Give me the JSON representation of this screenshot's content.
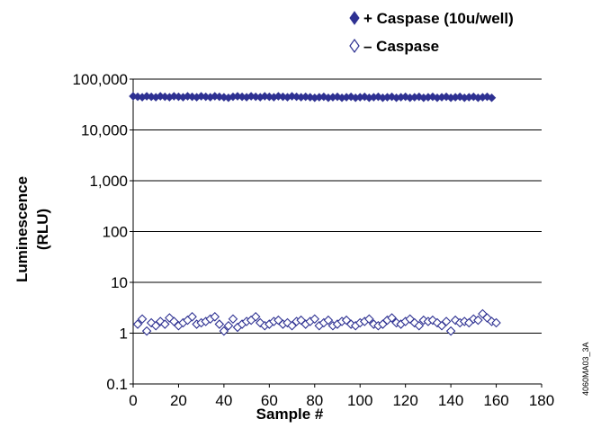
{
  "chart_data": {
    "type": "scatter",
    "xlabel": "Sample #",
    "ylabel_lines": [
      "Luminescence",
      "(RLU)"
    ],
    "xlim": [
      0,
      180
    ],
    "ylim": [
      0.1,
      100000
    ],
    "y_scale": "log",
    "x_ticks": [
      "0",
      "20",
      "40",
      "60",
      "80",
      "100",
      "120",
      "140",
      "160",
      "180"
    ],
    "y_ticks": [
      "0.1",
      "1",
      "10",
      "100",
      "1,000",
      "10,000",
      "100,000"
    ],
    "grid": "horizontal",
    "legend_position": "top-right",
    "series": [
      {
        "name": "+ Caspase (10u/well)",
        "marker": "filled-diamond",
        "color": "#2e3192",
        "x": [
          0,
          2,
          4,
          6,
          8,
          10,
          12,
          14,
          16,
          18,
          20,
          22,
          24,
          26,
          28,
          30,
          32,
          34,
          36,
          38,
          40,
          42,
          44,
          46,
          48,
          50,
          52,
          54,
          56,
          58,
          60,
          62,
          64,
          66,
          68,
          70,
          72,
          74,
          76,
          78,
          80,
          82,
          84,
          86,
          88,
          90,
          92,
          94,
          96,
          98,
          100,
          102,
          104,
          106,
          108,
          110,
          112,
          114,
          116,
          118,
          120,
          122,
          124,
          126,
          128,
          130,
          132,
          134,
          136,
          138,
          140,
          142,
          144,
          146,
          148,
          150,
          152,
          154,
          156,
          158
        ],
        "y": [
          46000,
          45000,
          44000,
          46000,
          45000,
          44000,
          46000,
          45000,
          44000,
          46000,
          45000,
          44000,
          46000,
          45000,
          44000,
          46000,
          45000,
          44000,
          46000,
          45000,
          44000,
          43000,
          45000,
          46000,
          45000,
          44000,
          46000,
          45000,
          44000,
          46000,
          45000,
          44000,
          46000,
          45000,
          44000,
          46000,
          45000,
          44000,
          45000,
          44000,
          43000,
          44000,
          45000,
          43000,
          44000,
          45000,
          43000,
          44000,
          45000,
          43000,
          44000,
          45000,
          43000,
          44000,
          45000,
          43000,
          44000,
          45000,
          43000,
          44000,
          45000,
          43000,
          44000,
          45000,
          43000,
          44000,
          45000,
          43000,
          44000,
          45000,
          43000,
          44000,
          45000,
          43000,
          44000,
          45000,
          43000,
          44000,
          45000,
          43000
        ]
      },
      {
        "name": "– Caspase",
        "marker": "open-diamond",
        "color": "#2e3192",
        "x": [
          2,
          4,
          6,
          8,
          10,
          12,
          14,
          16,
          18,
          20,
          22,
          24,
          26,
          28,
          30,
          32,
          34,
          36,
          38,
          40,
          42,
          44,
          46,
          48,
          50,
          52,
          54,
          56,
          58,
          60,
          62,
          64,
          66,
          68,
          70,
          72,
          74,
          76,
          78,
          80,
          82,
          84,
          86,
          88,
          90,
          92,
          94,
          96,
          98,
          100,
          102,
          104,
          106,
          108,
          110,
          112,
          114,
          116,
          118,
          120,
          122,
          124,
          126,
          128,
          130,
          132,
          134,
          136,
          138,
          140,
          142,
          144,
          146,
          148,
          150,
          152,
          154,
          156,
          158,
          160
        ],
        "y": [
          1.5,
          1.9,
          1.1,
          1.6,
          1.4,
          1.7,
          1.5,
          2.0,
          1.7,
          1.4,
          1.6,
          1.8,
          2.1,
          1.5,
          1.6,
          1.7,
          1.9,
          2.1,
          1.5,
          1.1,
          1.4,
          1.9,
          1.3,
          1.5,
          1.7,
          1.8,
          2.1,
          1.6,
          1.4,
          1.5,
          1.7,
          1.8,
          1.5,
          1.6,
          1.4,
          1.7,
          1.8,
          1.5,
          1.7,
          1.9,
          1.4,
          1.6,
          1.8,
          1.4,
          1.5,
          1.7,
          1.8,
          1.5,
          1.4,
          1.6,
          1.7,
          1.9,
          1.5,
          1.4,
          1.5,
          1.8,
          2.0,
          1.6,
          1.5,
          1.7,
          1.9,
          1.6,
          1.4,
          1.8,
          1.7,
          1.8,
          1.6,
          1.4,
          1.7,
          1.1,
          1.8,
          1.6,
          1.7,
          1.6,
          1.9,
          1.8,
          2.4,
          2.0,
          1.7,
          1.6
        ]
      }
    ]
  },
  "figure_code": "4060MA03_3A"
}
